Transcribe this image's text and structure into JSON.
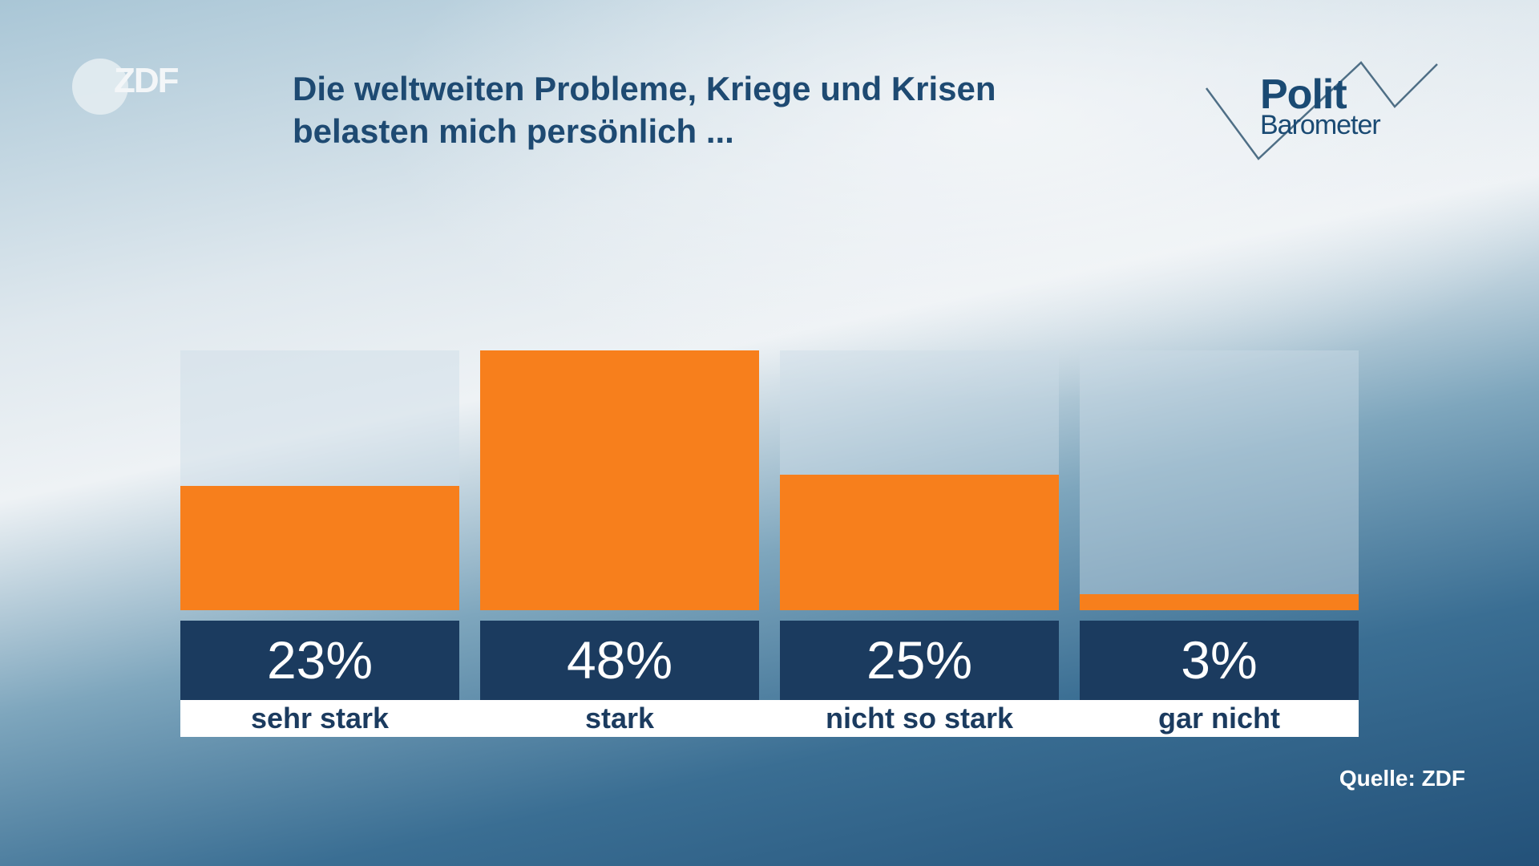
{
  "brand": {
    "broadcaster_logo": "ZDF",
    "program_logo_line1": "Polit",
    "program_logo_line2": "Barometer"
  },
  "title_lines": [
    "Die weltweiten Probleme, Kriege und Krisen",
    "belasten mich persönlich ..."
  ],
  "source": "Quelle: ZDF",
  "colors": {
    "bar": "#f77f1c",
    "value_box": "#1b3b5f",
    "title": "#1e4a72"
  },
  "chart_data": {
    "type": "bar",
    "title": "Die weltweiten Probleme, Kriege und Krisen belasten mich persönlich ...",
    "categories": [
      "sehr stark",
      "stark",
      "nicht so stark",
      "gar nicht"
    ],
    "values": [
      23,
      48,
      25,
      3
    ],
    "value_labels": [
      "23%",
      "48%",
      "25%",
      "3%"
    ],
    "unit": "%",
    "ylim": [
      0,
      48
    ],
    "grid": false
  }
}
